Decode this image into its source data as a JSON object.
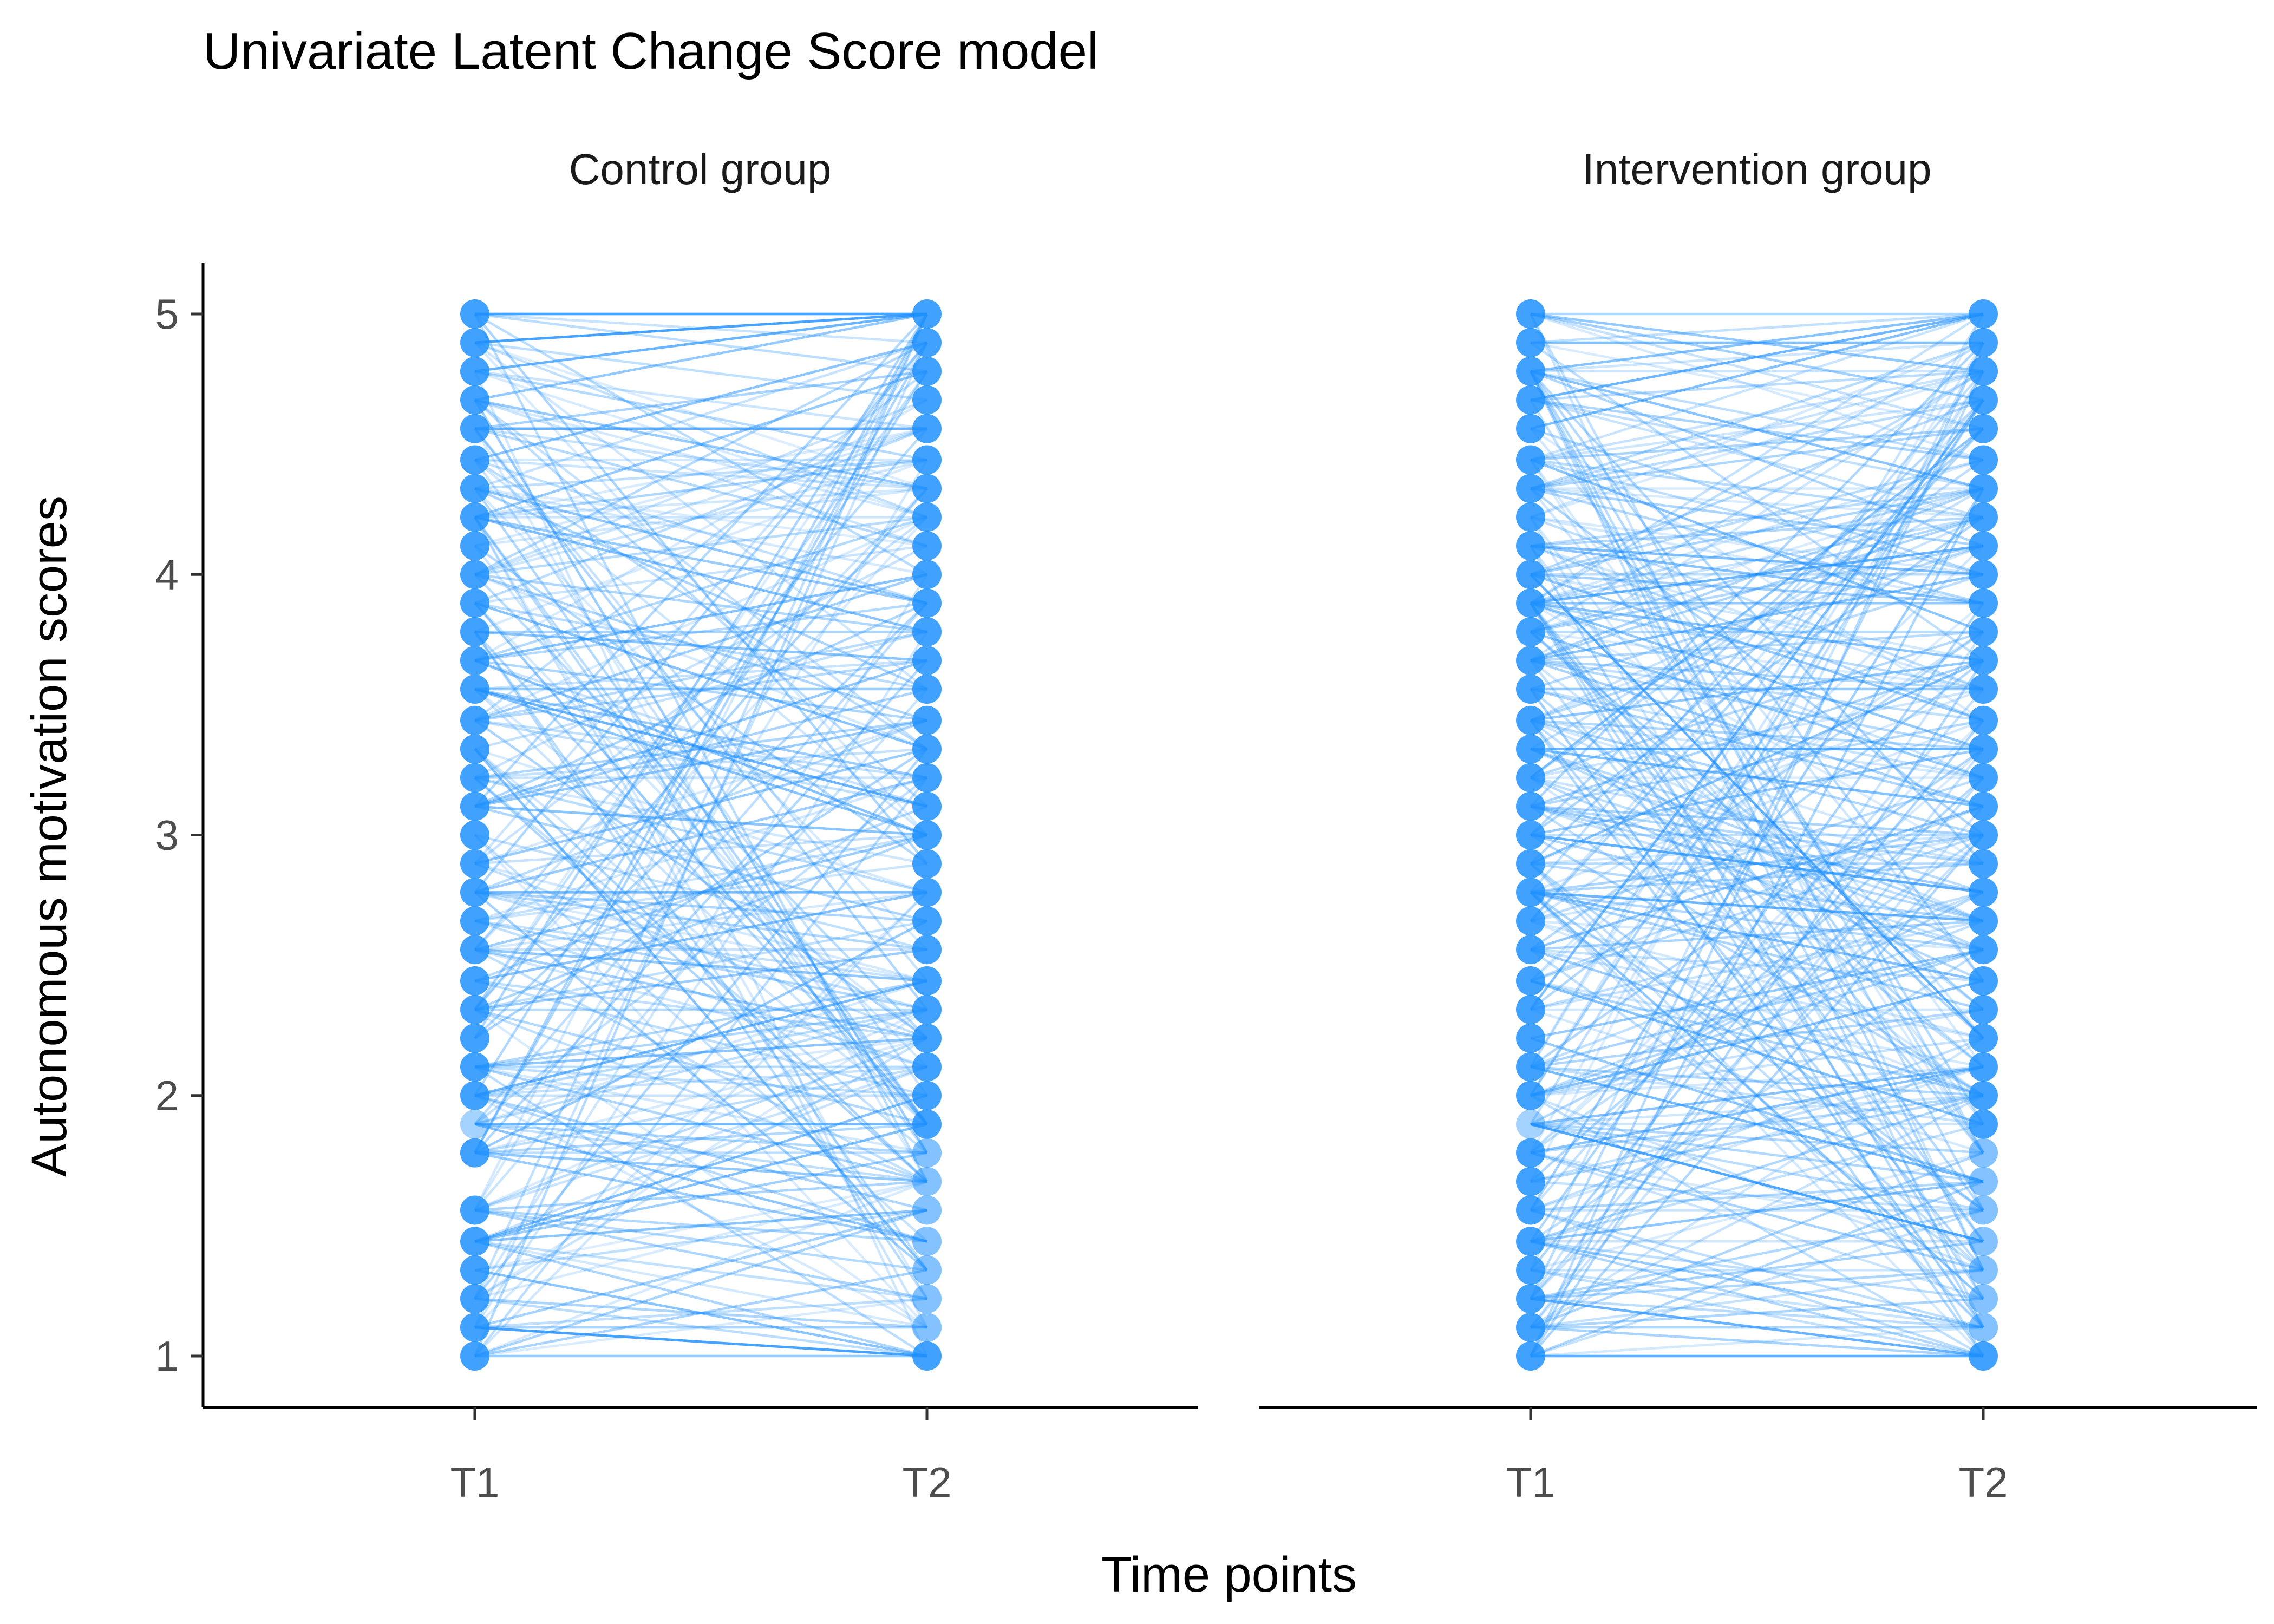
{
  "chart_data": {
    "type": "line",
    "title": "Univariate Latent Change Score model",
    "xlabel": "Time points",
    "ylabel": "Autonomous motivation scores",
    "x_categories": [
      "T1",
      "T2"
    ],
    "y_ticks": [
      1,
      2,
      3,
      4,
      5
    ],
    "ylim": [
      0.8,
      5.2
    ],
    "grid": false,
    "legend": "none",
    "point_color": "#1E90FF",
    "line_color": "#1E90FF",
    "panels": [
      {
        "name": "Control group",
        "t1_levels": [
          1.0,
          1.11,
          1.22,
          1.33,
          1.44,
          1.56,
          1.78,
          1.89,
          2.0,
          2.11,
          2.22,
          2.33,
          2.44,
          2.56,
          2.67,
          2.78,
          2.89,
          3.0,
          3.11,
          3.22,
          3.33,
          3.44,
          3.56,
          3.67,
          3.78,
          3.89,
          4.0,
          4.11,
          4.22,
          4.33,
          4.44,
          4.56,
          4.67,
          4.78,
          4.89,
          5.0
        ],
        "t2_levels": [
          1.0,
          1.11,
          1.22,
          1.33,
          1.44,
          1.56,
          1.67,
          1.78,
          1.89,
          2.0,
          2.11,
          2.22,
          2.33,
          2.44,
          2.56,
          2.67,
          2.78,
          2.89,
          3.0,
          3.11,
          3.22,
          3.33,
          3.44,
          3.56,
          3.67,
          3.78,
          3.89,
          4.0,
          4.11,
          4.22,
          4.33,
          4.44,
          4.56,
          4.67,
          4.78,
          4.89,
          5.0
        ]
      },
      {
        "name": "Intervention group",
        "t1_levels": [
          1.0,
          1.11,
          1.22,
          1.33,
          1.44,
          1.56,
          1.67,
          1.78,
          1.89,
          2.0,
          2.11,
          2.22,
          2.33,
          2.44,
          2.56,
          2.67,
          2.78,
          2.89,
          3.0,
          3.11,
          3.22,
          3.33,
          3.44,
          3.56,
          3.67,
          3.78,
          3.89,
          4.0,
          4.11,
          4.22,
          4.33,
          4.44,
          4.56,
          4.67,
          4.78,
          4.89,
          5.0
        ],
        "t2_levels": [
          1.0,
          1.11,
          1.22,
          1.33,
          1.44,
          1.56,
          1.67,
          1.78,
          1.89,
          2.0,
          2.11,
          2.22,
          2.33,
          2.44,
          2.56,
          2.67,
          2.78,
          2.89,
          3.0,
          3.11,
          3.22,
          3.33,
          3.44,
          3.56,
          3.67,
          3.78,
          3.89,
          4.0,
          4.11,
          4.22,
          4.33,
          4.44,
          4.56,
          4.67,
          4.78,
          4.89,
          5.0
        ]
      }
    ]
  }
}
